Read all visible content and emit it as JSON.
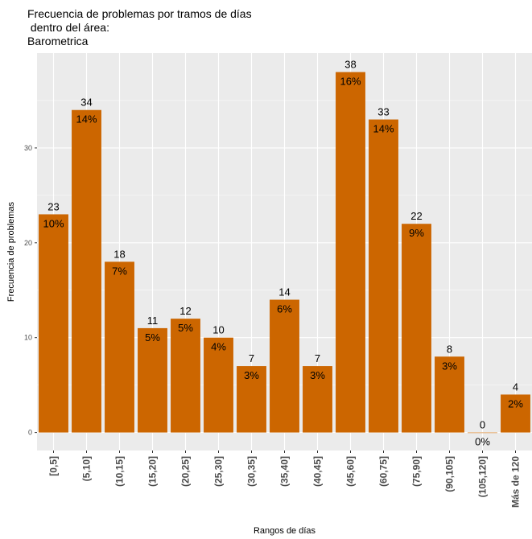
{
  "chart_data": {
    "type": "bar",
    "title_lines": [
      "Frecuencia de problemas por tramos de días",
      " dentro del área:",
      "Barometrica"
    ],
    "xlabel": "Rangos de días",
    "ylabel": "Frecuencia de problemas",
    "categories": [
      "[0,5]",
      "(5,10]",
      "(10,15]",
      "(15,20]",
      "(20,25]",
      "(25,30]",
      "(30,35]",
      "(35,40]",
      "(40,45]",
      "(45,60]",
      "(60,75]",
      "(75,90]",
      "(90,105]",
      "(105,120]",
      "Más de 120"
    ],
    "values": [
      23,
      34,
      18,
      11,
      12,
      10,
      7,
      14,
      7,
      38,
      33,
      22,
      8,
      0,
      4
    ],
    "count_labels": [
      "23",
      "34",
      "18",
      "11",
      "12",
      "10",
      "7",
      "14",
      "7",
      "38",
      "33",
      "22",
      "8",
      "0",
      "4"
    ],
    "percent_labels": [
      "10%",
      "14%",
      "7%",
      "5%",
      "5%",
      "4%",
      "3%",
      "6%",
      "3%",
      "16%",
      "14%",
      "9%",
      "3%",
      "0%",
      "2%"
    ],
    "yticks": [
      0,
      10,
      20,
      30
    ],
    "ylim": [
      -1.9,
      40
    ],
    "grid": true,
    "colors": {
      "bar": "#CC6600",
      "panel": "#EBEBEB",
      "grid": "#FFFFFF"
    }
  }
}
